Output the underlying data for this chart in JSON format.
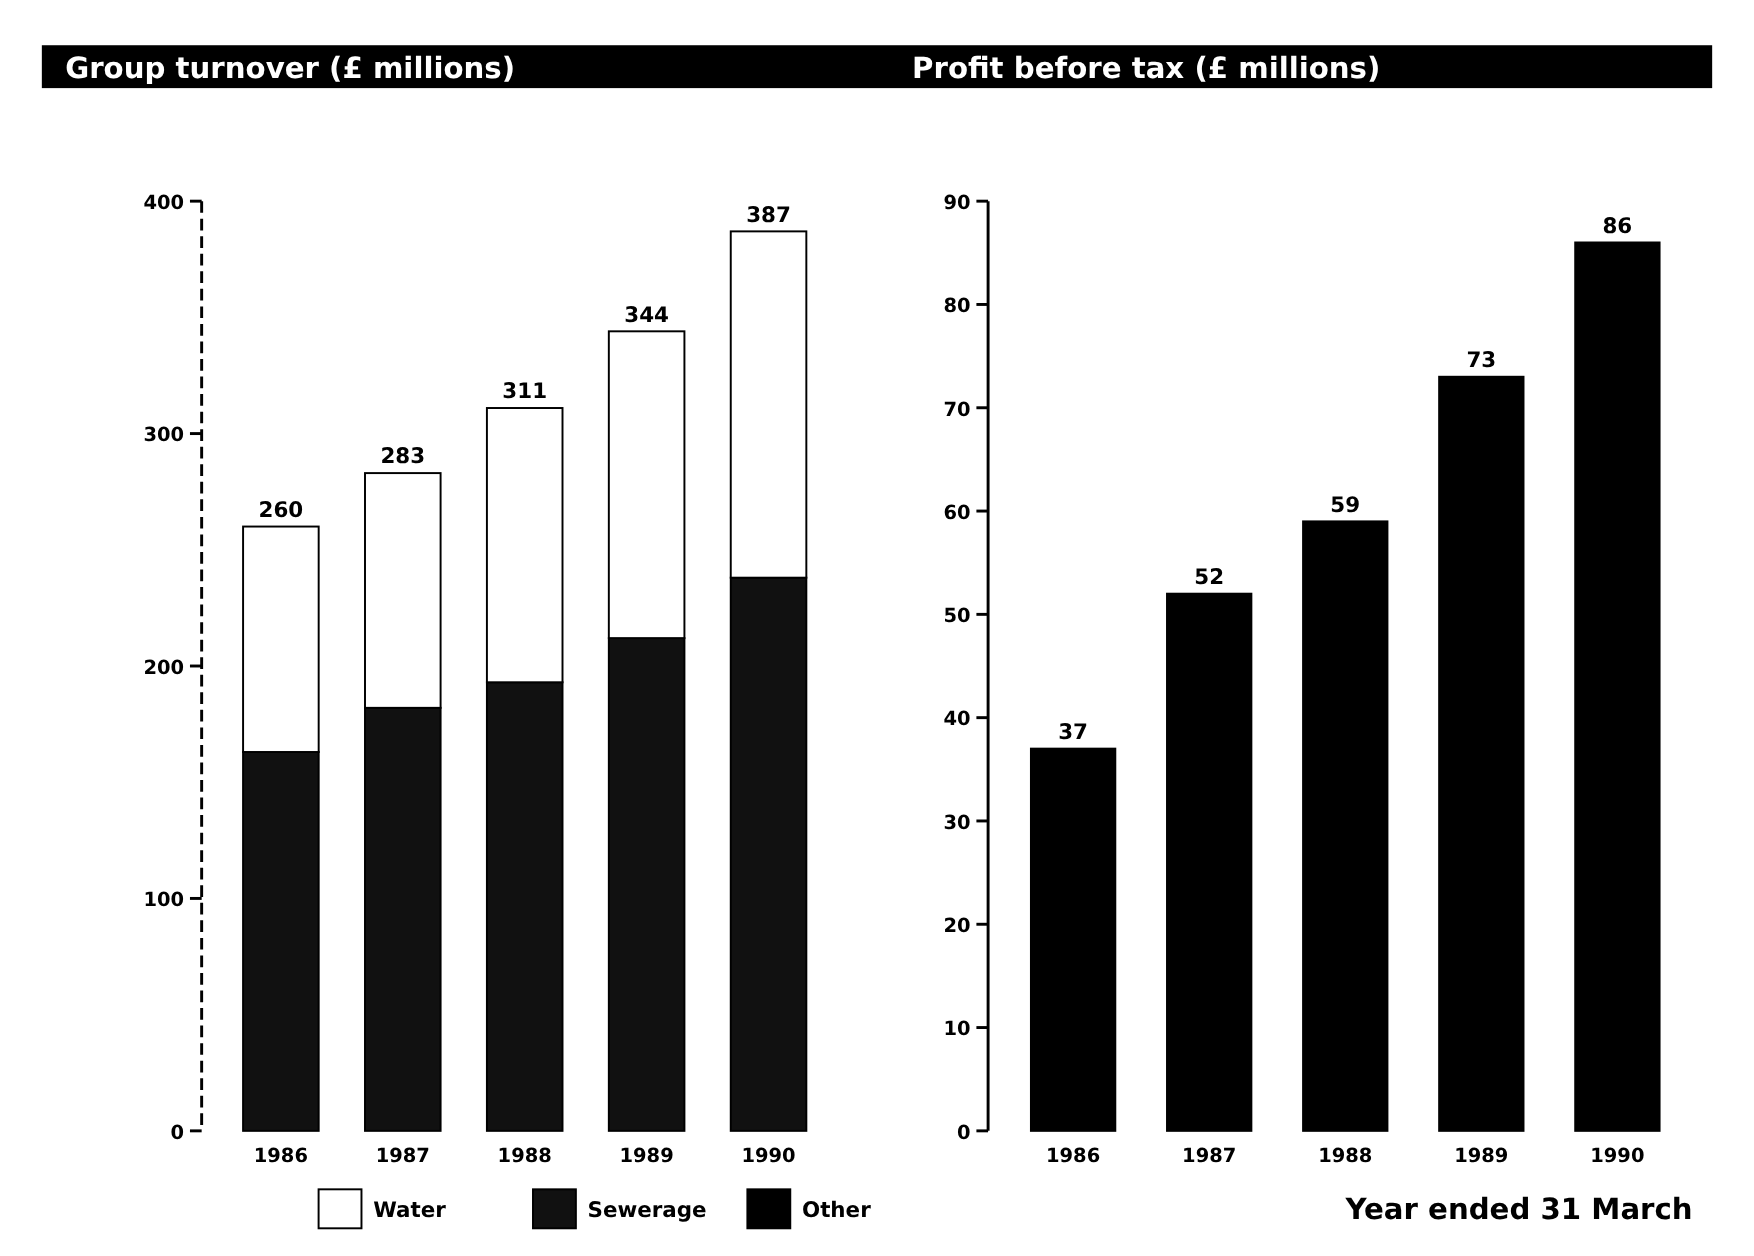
{
  "chart_data": [
    {
      "type": "bar",
      "title": "Group turnover (£ millions)",
      "categories": [
        "1986",
        "1987",
        "1988",
        "1989",
        "1990"
      ],
      "stacked": true,
      "series": [
        {
          "name": "Other",
          "color": "#000000",
          "values": [
            null,
            null,
            null,
            null,
            null
          ]
        },
        {
          "name": "Sewerage",
          "color": "#111111",
          "values": [
            163,
            182,
            193,
            212,
            238
          ]
        },
        {
          "name": "Water",
          "color": "#ffffff",
          "values": [
            97,
            101,
            118,
            132,
            149
          ]
        }
      ],
      "totals": [
        "260",
        "283",
        "311",
        "344",
        "387"
      ],
      "ylim": [
        0,
        400
      ],
      "yticks": [
        0,
        100,
        200,
        300,
        400
      ],
      "grid": false,
      "legend": "bottom"
    },
    {
      "type": "bar",
      "title": "Profit before tax (£ millions)",
      "xlabel": "Year ended 31 March",
      "categories": [
        "1986",
        "1987",
        "1988",
        "1989",
        "1990"
      ],
      "values": [
        37,
        52,
        59,
        73,
        86
      ],
      "color": "#000000",
      "data_labels": true,
      "ylim": [
        0,
        90
      ],
      "yticks": [
        0,
        10,
        20,
        30,
        40,
        50,
        60,
        70,
        80,
        90
      ],
      "grid": false
    }
  ]
}
